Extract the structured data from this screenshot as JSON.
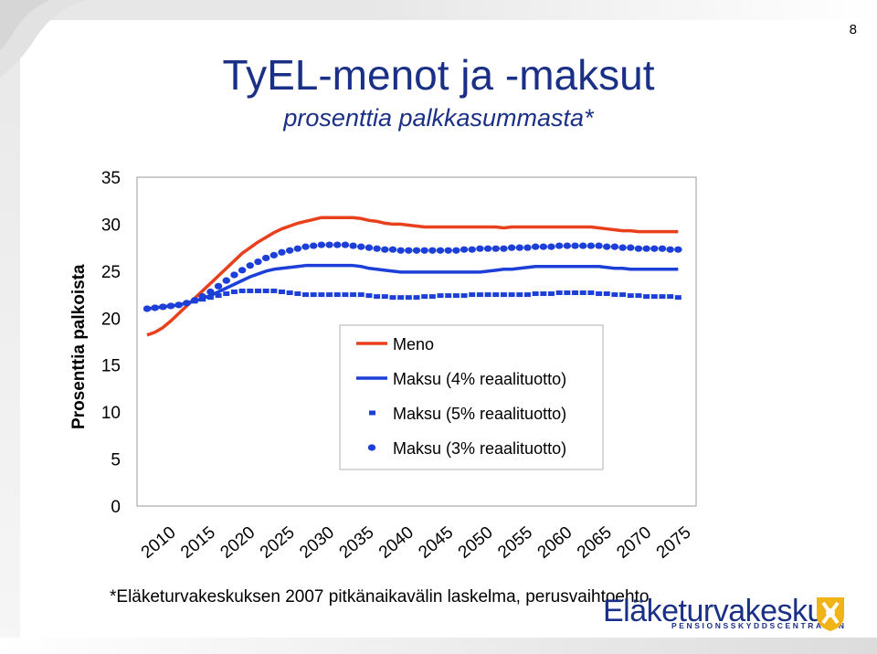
{
  "page_number": "8",
  "title": "TyEL-menot ja -maksut",
  "subtitle": "prosenttia palkkasummasta*",
  "footnote": "*Eläketurvakeskuksen 2007 pitkänaikavälin laskelma, perusvaihtoehto",
  "logo": {
    "name": "Eläketurvakeskus",
    "sub": "PENSIONSSKYDDSCENTRALEN"
  },
  "colors": {
    "meno": "#e8401c",
    "maksu": "#1c3fd8",
    "title": "#1a2f86"
  },
  "chart_data": {
    "type": "line",
    "title": "",
    "xlabel": "",
    "ylabel": "Prosenttia palkoista",
    "xlim": [
      2010,
      2078
    ],
    "ylim": [
      0,
      35
    ],
    "yticks": [
      0,
      5,
      10,
      15,
      20,
      25,
      30,
      35
    ],
    "xticks": [
      2010,
      2015,
      2020,
      2025,
      2030,
      2035,
      2040,
      2045,
      2050,
      2055,
      2060,
      2065,
      2070,
      2075
    ],
    "grid": false,
    "legend_position": "center-right",
    "x": [
      2010,
      2011,
      2012,
      2013,
      2014,
      2015,
      2016,
      2017,
      2018,
      2019,
      2020,
      2021,
      2022,
      2023,
      2024,
      2025,
      2026,
      2027,
      2028,
      2029,
      2030,
      2031,
      2032,
      2033,
      2034,
      2035,
      2036,
      2037,
      2038,
      2039,
      2040,
      2041,
      2042,
      2043,
      2044,
      2045,
      2046,
      2047,
      2048,
      2049,
      2050,
      2051,
      2052,
      2053,
      2054,
      2055,
      2056,
      2057,
      2058,
      2059,
      2060,
      2061,
      2062,
      2063,
      2064,
      2065,
      2066,
      2067,
      2068,
      2069,
      2070,
      2071,
      2072,
      2073,
      2074,
      2075,
      2076,
      2077
    ],
    "series": [
      {
        "name": "Meno",
        "style": "line",
        "color": "#e8401c",
        "values": [
          18.2,
          18.5,
          19.0,
          19.7,
          20.5,
          21.3,
          22.1,
          22.9,
          23.7,
          24.5,
          25.3,
          26.1,
          26.9,
          27.5,
          28.1,
          28.6,
          29.1,
          29.5,
          29.8,
          30.1,
          30.3,
          30.5,
          30.7,
          30.7,
          30.7,
          30.7,
          30.7,
          30.6,
          30.4,
          30.3,
          30.1,
          30.0,
          30.0,
          29.9,
          29.8,
          29.7,
          29.7,
          29.7,
          29.7,
          29.7,
          29.7,
          29.7,
          29.7,
          29.7,
          29.7,
          29.6,
          29.7,
          29.7,
          29.7,
          29.7,
          29.7,
          29.7,
          29.7,
          29.7,
          29.7,
          29.7,
          29.7,
          29.6,
          29.5,
          29.4,
          29.3,
          29.3,
          29.2,
          29.2,
          29.2,
          29.2,
          29.2,
          29.2
        ]
      },
      {
        "name": "Maksu (4% reaalituotto)",
        "style": "line",
        "color": "#1c3fd8",
        "values": [
          21.0,
          21.1,
          21.2,
          21.3,
          21.4,
          21.6,
          21.8,
          22.1,
          22.4,
          22.8,
          23.2,
          23.6,
          24.0,
          24.4,
          24.7,
          25.0,
          25.2,
          25.3,
          25.4,
          25.5,
          25.6,
          25.6,
          25.6,
          25.6,
          25.6,
          25.6,
          25.6,
          25.5,
          25.3,
          25.2,
          25.1,
          25.0,
          24.9,
          24.9,
          24.9,
          24.9,
          24.9,
          24.9,
          24.9,
          24.9,
          24.9,
          24.9,
          24.9,
          25.0,
          25.1,
          25.2,
          25.2,
          25.3,
          25.4,
          25.5,
          25.5,
          25.5,
          25.5,
          25.5,
          25.5,
          25.5,
          25.5,
          25.5,
          25.4,
          25.3,
          25.3,
          25.2,
          25.2,
          25.2,
          25.2,
          25.2,
          25.2,
          25.2
        ]
      },
      {
        "name": "Maksu (5% reaalituotto)",
        "style": "dash",
        "color": "#1c3fd8",
        "values": [
          21.0,
          21.1,
          21.2,
          21.3,
          21.4,
          21.6,
          21.8,
          22.0,
          22.2,
          22.4,
          22.6,
          22.8,
          22.9,
          22.9,
          22.9,
          22.9,
          22.9,
          22.8,
          22.7,
          22.6,
          22.5,
          22.5,
          22.5,
          22.5,
          22.5,
          22.5,
          22.5,
          22.5,
          22.4,
          22.3,
          22.3,
          22.2,
          22.2,
          22.2,
          22.2,
          22.3,
          22.3,
          22.4,
          22.4,
          22.4,
          22.4,
          22.5,
          22.5,
          22.5,
          22.5,
          22.5,
          22.5,
          22.5,
          22.5,
          22.6,
          22.6,
          22.6,
          22.7,
          22.7,
          22.7,
          22.7,
          22.7,
          22.6,
          22.6,
          22.5,
          22.5,
          22.4,
          22.4,
          22.3,
          22.3,
          22.3,
          22.3,
          22.2
        ]
      },
      {
        "name": "Maksu (3% reaalituotto)",
        "style": "dots",
        "color": "#1c3fd8",
        "values": [
          21.0,
          21.1,
          21.2,
          21.3,
          21.4,
          21.6,
          21.9,
          22.3,
          22.8,
          23.4,
          24.0,
          24.6,
          25.1,
          25.6,
          26.0,
          26.4,
          26.7,
          27.0,
          27.2,
          27.4,
          27.6,
          27.7,
          27.8,
          27.8,
          27.8,
          27.8,
          27.7,
          27.6,
          27.5,
          27.4,
          27.3,
          27.3,
          27.2,
          27.2,
          27.2,
          27.2,
          27.2,
          27.2,
          27.2,
          27.2,
          27.3,
          27.3,
          27.4,
          27.4,
          27.4,
          27.4,
          27.5,
          27.5,
          27.5,
          27.6,
          27.6,
          27.6,
          27.7,
          27.7,
          27.7,
          27.7,
          27.7,
          27.7,
          27.6,
          27.6,
          27.5,
          27.5,
          27.4,
          27.4,
          27.4,
          27.4,
          27.3,
          27.3
        ]
      }
    ]
  }
}
